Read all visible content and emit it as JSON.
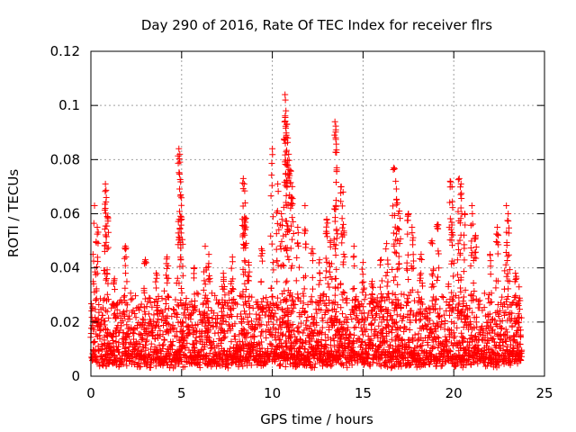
{
  "chart_data": {
    "type": "scatter",
    "title": "Day 290 of 2016, Rate Of TEC Index for receiver flrs",
    "xlabel": "GPS time / hours",
    "ylabel": "ROTI / TECUs",
    "xlim": [
      0,
      25
    ],
    "ylim": [
      0,
      0.12
    ],
    "xticks": [
      0,
      5,
      10,
      15,
      20,
      25
    ],
    "yticks": [
      0,
      0.02,
      0.04,
      0.06,
      0.08,
      0.1,
      0.12
    ],
    "xtick_labels": [
      "0",
      "5",
      "10",
      "15",
      "20",
      "25"
    ],
    "ytick_labels": [
      "0",
      "0.02",
      "0.04",
      "0.06",
      "0.08",
      "0.1",
      "0.12"
    ],
    "grid": true,
    "marker": "+",
    "series_color": "#ff0000",
    "series": [
      {
        "name": "ROTI",
        "time_range": [
          0,
          23.75
        ],
        "baseline_range": [
          0.003,
          0.03
        ],
        "peaks": [
          {
            "x": 0.2,
            "y": 0.063
          },
          {
            "x": 0.35,
            "y": 0.055
          },
          {
            "x": 0.8,
            "y": 0.071
          },
          {
            "x": 0.85,
            "y": 0.066
          },
          {
            "x": 0.9,
            "y": 0.059
          },
          {
            "x": 1.3,
            "y": 0.036
          },
          {
            "x": 1.9,
            "y": 0.048
          },
          {
            "x": 3.0,
            "y": 0.043
          },
          {
            "x": 3.6,
            "y": 0.038
          },
          {
            "x": 4.2,
            "y": 0.044
          },
          {
            "x": 4.85,
            "y": 0.084
          },
          {
            "x": 4.9,
            "y": 0.082
          },
          {
            "x": 4.95,
            "y": 0.067
          },
          {
            "x": 5.0,
            "y": 0.058
          },
          {
            "x": 5.7,
            "y": 0.04
          },
          {
            "x": 6.3,
            "y": 0.048
          },
          {
            "x": 6.5,
            "y": 0.045
          },
          {
            "x": 7.3,
            "y": 0.038
          },
          {
            "x": 7.8,
            "y": 0.044
          },
          {
            "x": 8.4,
            "y": 0.073
          },
          {
            "x": 8.45,
            "y": 0.071
          },
          {
            "x": 8.5,
            "y": 0.064
          },
          {
            "x": 8.7,
            "y": 0.042
          },
          {
            "x": 9.4,
            "y": 0.047
          },
          {
            "x": 10.0,
            "y": 0.084
          },
          {
            "x": 10.3,
            "y": 0.071
          },
          {
            "x": 10.5,
            "y": 0.06
          },
          {
            "x": 10.7,
            "y": 0.104
          },
          {
            "x": 10.72,
            "y": 0.102
          },
          {
            "x": 10.75,
            "y": 0.098
          },
          {
            "x": 10.8,
            "y": 0.093
          },
          {
            "x": 10.85,
            "y": 0.088
          },
          {
            "x": 10.9,
            "y": 0.082
          },
          {
            "x": 11.0,
            "y": 0.076
          },
          {
            "x": 11.1,
            "y": 0.07
          },
          {
            "x": 11.4,
            "y": 0.055
          },
          {
            "x": 11.8,
            "y": 0.063
          },
          {
            "x": 12.2,
            "y": 0.047
          },
          {
            "x": 12.6,
            "y": 0.043
          },
          {
            "x": 13.0,
            "y": 0.058
          },
          {
            "x": 13.2,
            "y": 0.05
          },
          {
            "x": 13.45,
            "y": 0.094
          },
          {
            "x": 13.5,
            "y": 0.091
          },
          {
            "x": 13.55,
            "y": 0.077
          },
          {
            "x": 13.8,
            "y": 0.07
          },
          {
            "x": 13.9,
            "y": 0.068
          },
          {
            "x": 14.5,
            "y": 0.048
          },
          {
            "x": 15.0,
            "y": 0.042
          },
          {
            "x": 15.5,
            "y": 0.035
          },
          {
            "x": 16.0,
            "y": 0.043
          },
          {
            "x": 16.3,
            "y": 0.049
          },
          {
            "x": 16.7,
            "y": 0.077
          },
          {
            "x": 16.8,
            "y": 0.072
          },
          {
            "x": 16.9,
            "y": 0.064
          },
          {
            "x": 17.0,
            "y": 0.061
          },
          {
            "x": 17.5,
            "y": 0.06
          },
          {
            "x": 17.7,
            "y": 0.055
          },
          {
            "x": 18.2,
            "y": 0.045
          },
          {
            "x": 18.8,
            "y": 0.05
          },
          {
            "x": 19.1,
            "y": 0.056
          },
          {
            "x": 19.8,
            "y": 0.072
          },
          {
            "x": 19.9,
            "y": 0.07
          },
          {
            "x": 20.3,
            "y": 0.073
          },
          {
            "x": 20.4,
            "y": 0.071
          },
          {
            "x": 20.6,
            "y": 0.06
          },
          {
            "x": 21.0,
            "y": 0.063
          },
          {
            "x": 21.2,
            "y": 0.052
          },
          {
            "x": 22.0,
            "y": 0.045
          },
          {
            "x": 22.4,
            "y": 0.055
          },
          {
            "x": 22.9,
            "y": 0.063
          },
          {
            "x": 23.0,
            "y": 0.06
          },
          {
            "x": 23.4,
            "y": 0.038
          },
          {
            "x": 23.6,
            "y": 0.033
          }
        ]
      }
    ]
  }
}
